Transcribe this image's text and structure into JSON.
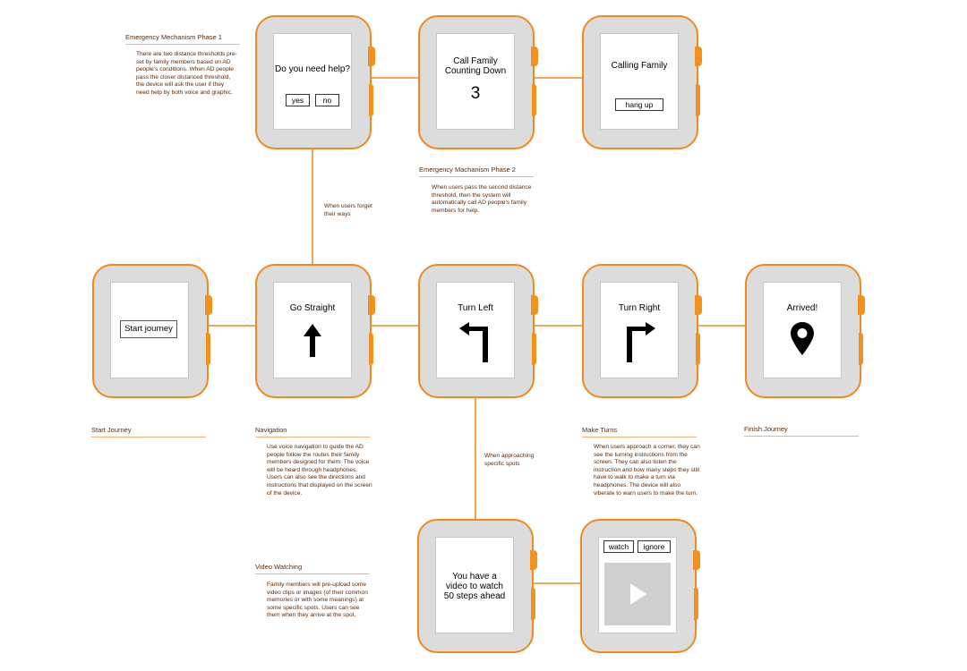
{
  "diagram": {
    "colors": {
      "accent": "#f08a1c",
      "watch_body": "#dcdcdc",
      "text": "#5a2a0a"
    },
    "watches": {
      "help": {
        "question": "Do you need help?",
        "yes": "yes",
        "no": "no"
      },
      "countdown": {
        "title": "Call Family Counting Down",
        "number": "3"
      },
      "calling": {
        "title": "Calling Family",
        "button": "hang up"
      },
      "start": {
        "button": "Start journey"
      },
      "straight": {
        "title": "Go Straight",
        "icon": "arrow-up-icon"
      },
      "left": {
        "title": "Turn Left",
        "icon": "turn-left-arrow-icon"
      },
      "right": {
        "title": "Turn Right",
        "icon": "turn-right-arrow-icon"
      },
      "arrived": {
        "title": "Arrived!",
        "icon": "map-pin-icon"
      },
      "video_notice": {
        "text": "You have a video to watch 50 steps ahead"
      },
      "video_player": {
        "watch": "watch",
        "ignore": "ignore",
        "icon": "play-icon"
      }
    },
    "notes": {
      "phase1": {
        "heading": "Emergency Mechanism Phase 1",
        "text": "There are two distance thresholds pre-set by family members based on AD people's conditions. When AD people pass the closer distanced threshold, the device will ask the user if they need help by both voice and graphic."
      },
      "phase2": {
        "heading": "Emergency Machanism Phase 2",
        "text": "When users pass the second distance threshold, then the system will automatically call AD people's family members for help."
      },
      "start": {
        "heading": "Start Journey"
      },
      "navigation": {
        "heading": "Navigation",
        "text": "Use voice navigation to guide the AD people follow the routes their family members designed for them. The voice will be heard through headphones. Users can also see the directions and instructions that displayed on  the  screen of the device."
      },
      "turns": {
        "heading": "Make Turns",
        "text": "When users approach a corner, they can see the turning instructions from the screen. They can also listen the instruction and how many steps they still have to walk to make a turn via headphones. The device will also viberate to warn users to make the turn."
      },
      "finish": {
        "heading": "Finish Journey"
      },
      "video": {
        "heading": "Video Watching",
        "text": "Family members will pre-upload some video clips or images (of their common memories or with some meanings) at some specific spots. Users can see them when they arrive at the spot."
      }
    },
    "edge_labels": {
      "forget": "When users forget their ways",
      "approach": "When approaching specific spots"
    }
  }
}
